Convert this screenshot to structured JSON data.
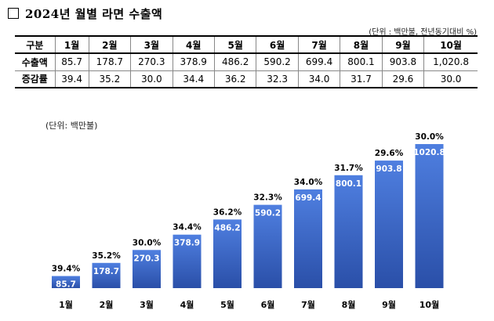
{
  "header": {
    "title": "2024년 월별 라면 수출액",
    "unit_note": "(단위 : 백만불, 전년동기대비 %)"
  },
  "table": {
    "corner": "구분",
    "months": [
      "1월",
      "2월",
      "3월",
      "4월",
      "5월",
      "6월",
      "7월",
      "8월",
      "9월",
      "10월"
    ],
    "rows": [
      {
        "label": "수출액",
        "values": [
          "85.7",
          "178.7",
          "270.3",
          "378.9",
          "486.2",
          "590.2",
          "699.4",
          "800.1",
          "903.8",
          "1,020.8"
        ]
      },
      {
        "label": "증감률",
        "values": [
          "39.4",
          "35.2",
          "30.0",
          "34.4",
          "36.2",
          "32.3",
          "34.0",
          "31.7",
          "29.6",
          "30.0"
        ]
      }
    ]
  },
  "chart_unit": "(단위: 백만불)",
  "chart_data": {
    "type": "bar",
    "title": "",
    "xlabel": "",
    "ylabel": "",
    "categories": [
      "1월",
      "2월",
      "3월",
      "4월",
      "5월",
      "6월",
      "7월",
      "8월",
      "9월",
      "10월"
    ],
    "values": [
      85.7,
      178.7,
      270.3,
      378.9,
      486.2,
      590.2,
      699.4,
      800.1,
      903.8,
      1020.8
    ],
    "value_labels": [
      "85.7",
      "178.7",
      "270.3",
      "378.9",
      "486.2",
      "590.2",
      "699.4",
      "800.1",
      "903.8",
      "1020.8"
    ],
    "growth_rates": [
      39.4,
      35.2,
      30.0,
      34.4,
      36.2,
      32.3,
      34.0,
      31.7,
      29.6,
      30.0
    ],
    "growth_labels": [
      "39.4%",
      "35.2%",
      "30.0%",
      "34.4%",
      "36.2%",
      "32.3%",
      "34.0%",
      "31.7%",
      "29.6%",
      "30.0%"
    ],
    "ylim": [
      0,
      1020.8
    ],
    "grid": false,
    "legend": "none",
    "colors": {
      "bar_top": "#4f7fe0",
      "bar_bottom": "#2a4fa8"
    }
  }
}
